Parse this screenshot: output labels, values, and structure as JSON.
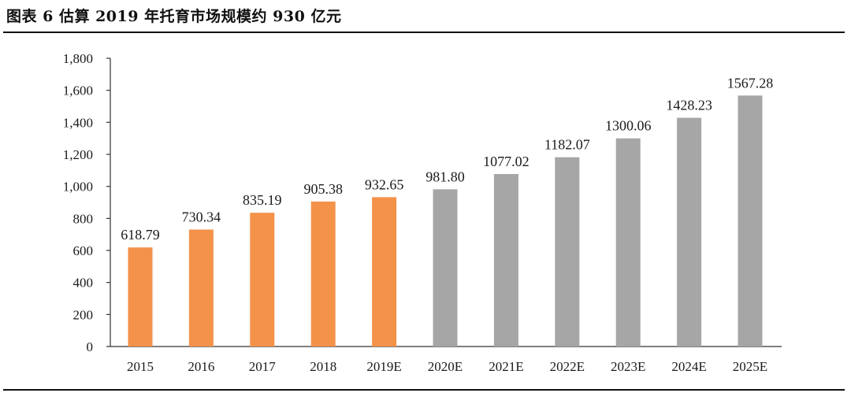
{
  "page": {
    "title": "图表 6 估算 2019 年托育市场规模约 930 亿元"
  },
  "chart_data": {
    "type": "bar",
    "title": "图表 6 估算 2019 年托育市场规模约 930 亿元",
    "xlabel": "",
    "ylabel": "",
    "categories": [
      "2015",
      "2016",
      "2017",
      "2018",
      "2019E",
      "2020E",
      "2021E",
      "2022E",
      "2023E",
      "2024E",
      "2025E"
    ],
    "values": [
      618.79,
      730.34,
      835.19,
      905.38,
      932.65,
      981.8,
      1077.02,
      1182.07,
      1300.06,
      1428.23,
      1567.28
    ],
    "value_labels": [
      "618.79",
      "730.34",
      "835.19",
      "905.38",
      "932.65",
      "981.80",
      "1077.02",
      "1182.07",
      "1300.06",
      "1428.23",
      "1567.28"
    ],
    "ylim": [
      0,
      1800
    ],
    "yticks": [
      0,
      200,
      400,
      600,
      800,
      1000,
      1200,
      1400,
      1600,
      1800
    ],
    "ytick_labels": [
      "0",
      "200",
      "400",
      "600",
      "800",
      "1,000",
      "1,200",
      "1,400",
      "1,600",
      "1,800"
    ],
    "bar_colors": [
      "#f4924a",
      "#f4924a",
      "#f4924a",
      "#f4924a",
      "#f4924a",
      "#a6a6a6",
      "#a6a6a6",
      "#a6a6a6",
      "#a6a6a6",
      "#a6a6a6",
      "#a6a6a6"
    ],
    "grid": false,
    "legend": "none"
  }
}
